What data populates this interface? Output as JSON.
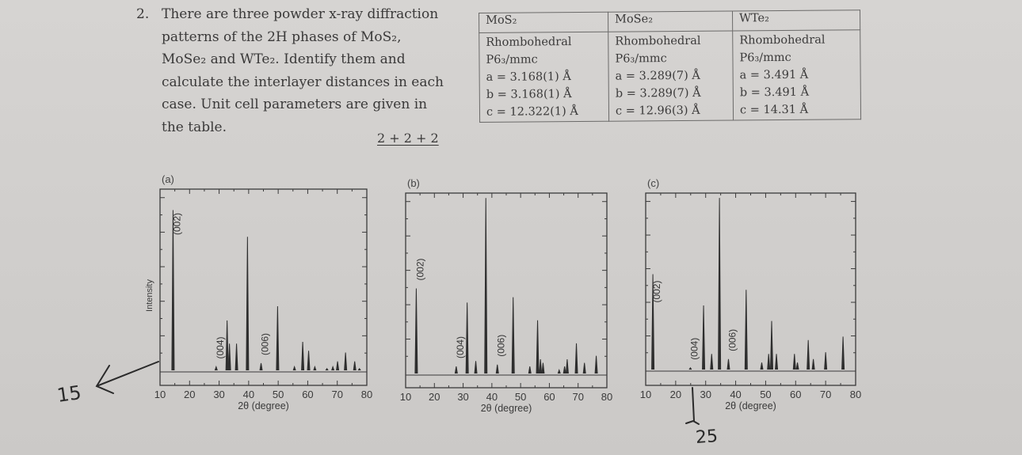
{
  "question": {
    "number": "2.",
    "lines": [
      "There are three powder x-ray diffraction",
      "patterns of the 2H phases of MoS₂,",
      "MoSe₂ and WTe₂. Identify them and",
      "calculate the interlayer distances in each",
      "case.  Unit cell parameters are given in",
      "the table."
    ],
    "marks": "2 + 2 + 2"
  },
  "table": {
    "columns": [
      {
        "compound": "MoS₂",
        "system": "Rhombohedral",
        "space_group": "P6₃/mmc",
        "a": "a = 3.168(1) Å",
        "b": "b = 3.168(1) Å",
        "c": "c = 12.322(1) Å"
      },
      {
        "compound": "MoSe₂",
        "system": "Rhombohedral",
        "space_group": "P6₃/mmc",
        "a": "a = 3.289(7) Å",
        "b": "b = 3.289(7) Å",
        "c": "c = 12.96(3) Å"
      },
      {
        "compound": "WTe₂",
        "system": "Rhombohedral",
        "space_group": "P6₃/mmc",
        "a": "a = 3.491 Å",
        "b": "b = 3.491 Å",
        "c": "c = 14.31 Å"
      }
    ]
  },
  "handwriting": {
    "note_a": "15",
    "note_c": "25"
  },
  "chart_data": [
    {
      "type": "bar",
      "panel": "(a)",
      "title": "",
      "xlabel": "2θ (degree)",
      "ylabel": "Intensity",
      "xlim": [
        10,
        80
      ],
      "ylim": [
        0,
        1
      ],
      "xticks": [
        10,
        20,
        30,
        40,
        50,
        60,
        70,
        80
      ],
      "grid": false,
      "annotations": [
        {
          "label": "(002)",
          "x": 14.4
        },
        {
          "label": "(004)",
          "x": 29.0
        },
        {
          "label": "(006)",
          "x": 44.2
        }
      ],
      "x": [
        14.4,
        29.0,
        32.7,
        33.5,
        35.9,
        39.6,
        44.2,
        49.8,
        55.5,
        58.3,
        60.3,
        62.4,
        66.5,
        68.5,
        70.1,
        72.8,
        75.9,
        77.5
      ],
      "values": [
        0.9,
        0.02,
        0.28,
        0.15,
        0.15,
        0.75,
        0.04,
        0.36,
        0.02,
        0.16,
        0.11,
        0.02,
        0.01,
        0.02,
        0.05,
        0.1,
        0.05,
        0.01
      ]
    },
    {
      "type": "bar",
      "panel": "(b)",
      "title": "",
      "xlabel": "2θ (degree)",
      "ylabel": "",
      "xlim": [
        10,
        80
      ],
      "ylim": [
        0,
        1
      ],
      "xticks": [
        10,
        20,
        30,
        40,
        50,
        60,
        70,
        80
      ],
      "grid": false,
      "annotations": [
        {
          "label": "(002)",
          "x": 13.7
        },
        {
          "label": "(004)",
          "x": 27.6
        },
        {
          "label": "(006)",
          "x": 41.9
        }
      ],
      "x": [
        13.7,
        27.6,
        31.4,
        34.4,
        37.9,
        41.9,
        47.4,
        53.2,
        55.9,
        56.9,
        57.8,
        63.4,
        65.3,
        66.2,
        69.4,
        72.2,
        76.3
      ],
      "values": [
        0.48,
        0.04,
        0.4,
        0.07,
        0.99,
        0.05,
        0.43,
        0.04,
        0.3,
        0.08,
        0.06,
        0.02,
        0.04,
        0.08,
        0.17,
        0.06,
        0.1
      ]
    },
    {
      "type": "bar",
      "panel": "(c)",
      "title": "",
      "xlabel": "2θ (degree)",
      "ylabel": "",
      "xlim": [
        10,
        80
      ],
      "ylim": [
        0,
        1
      ],
      "xticks": [
        10,
        20,
        30,
        40,
        50,
        60,
        70,
        80
      ],
      "grid": false,
      "annotations": [
        {
          "label": "(002)",
          "x": 12.4
        },
        {
          "label": "(004)",
          "x": 24.9
        },
        {
          "label": "(006)",
          "x": 37.6
        }
      ],
      "x": [
        12.4,
        24.9,
        29.3,
        32.0,
        34.6,
        37.6,
        43.5,
        48.7,
        51.0,
        52.0,
        53.6,
        59.6,
        60.6,
        64.2,
        65.9,
        70.0,
        75.8
      ],
      "values": [
        0.55,
        0.01,
        0.37,
        0.09,
        0.99,
        0.06,
        0.46,
        0.04,
        0.09,
        0.28,
        0.09,
        0.09,
        0.04,
        0.17,
        0.06,
        0.1,
        0.19
      ]
    }
  ]
}
